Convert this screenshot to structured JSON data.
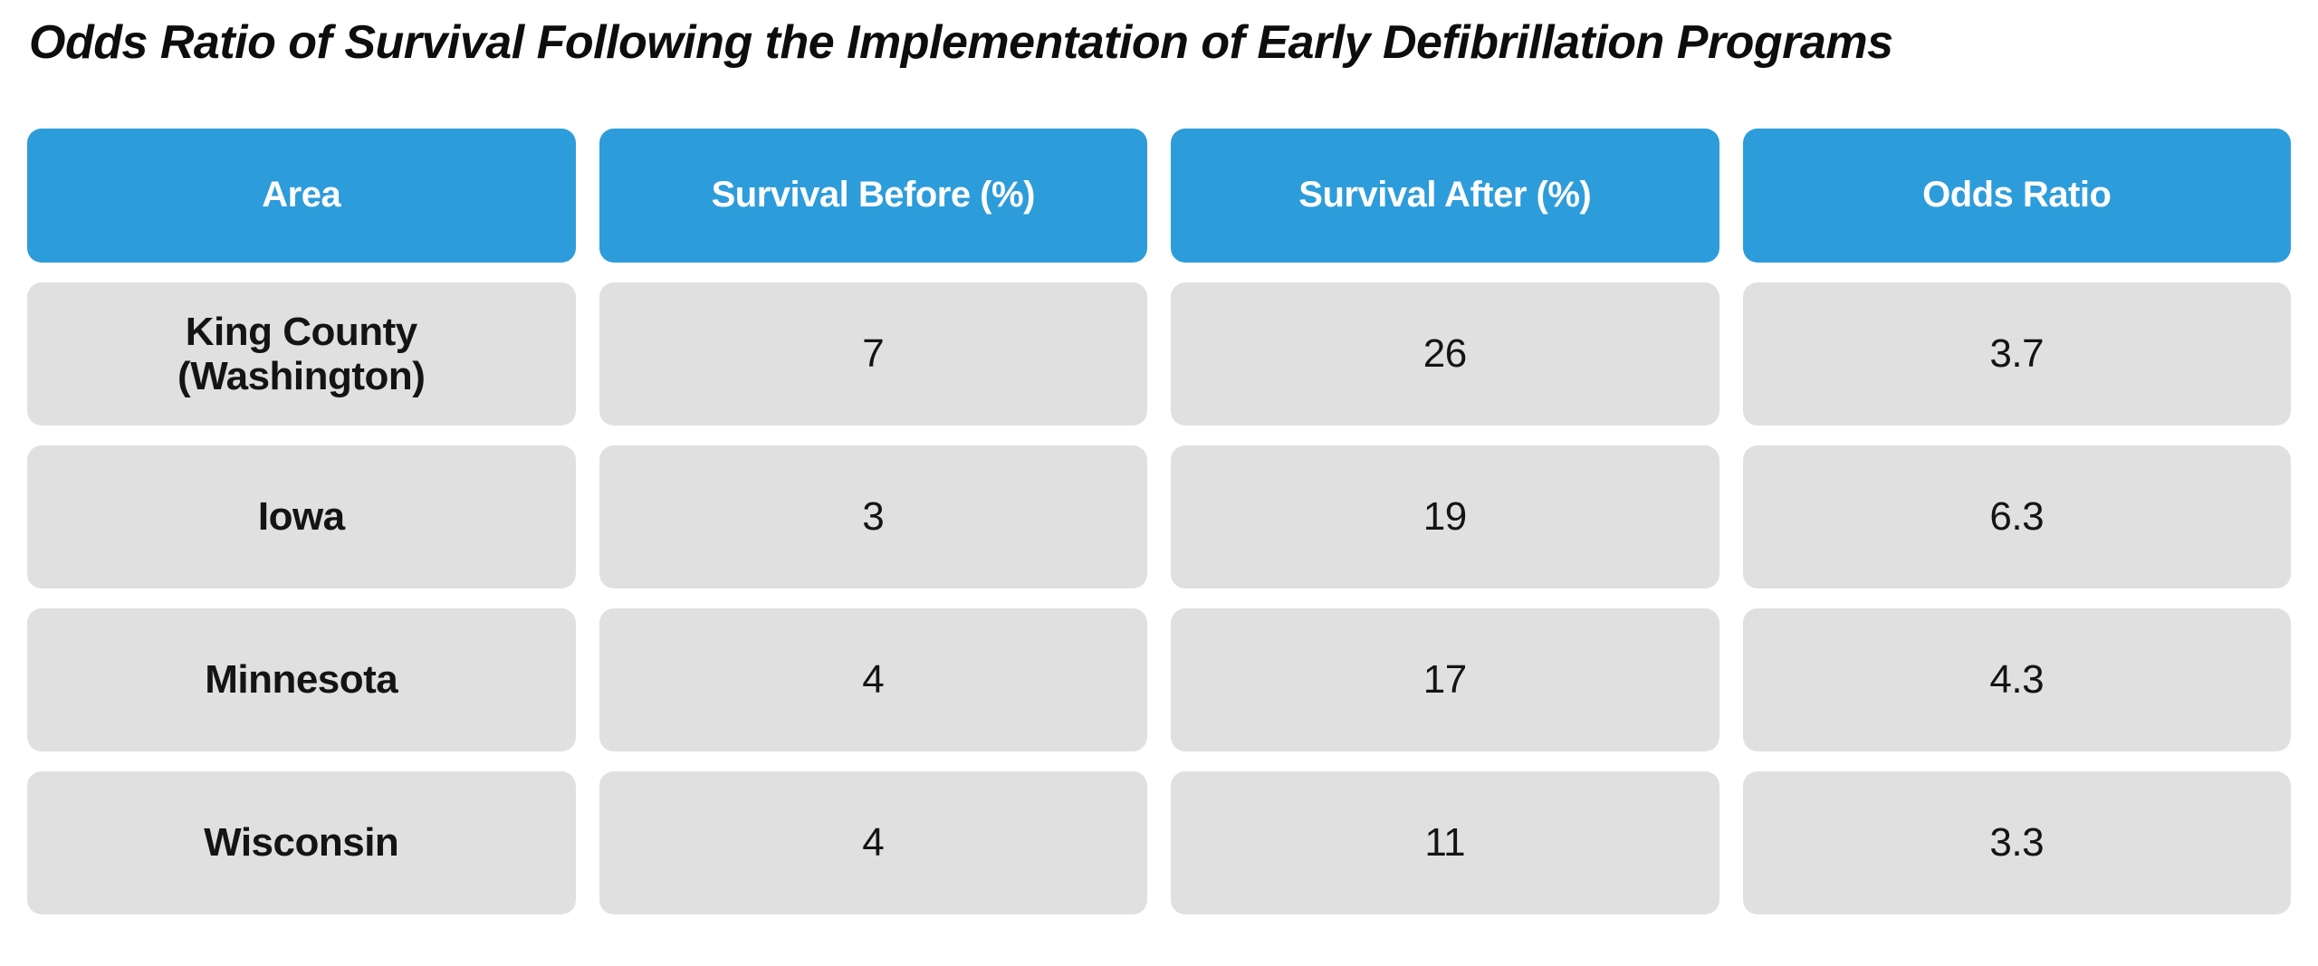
{
  "page": {
    "title": "Odds Ratio of Survival Following the Implementation of Early Defibrillation Programs"
  },
  "colors": {
    "header_bg": "#2D9CDB",
    "header_text": "#FFFFFF",
    "cell_bg": "#E0E0E0",
    "cell_text": "#141414",
    "background": "#FFFFFF"
  },
  "chart_data": {
    "type": "table",
    "title": "Odds Ratio of Survival Following the Implementation of Early Defibrillation Programs",
    "columns": [
      "Area",
      "Survival Before (%)",
      "Survival After (%)",
      "Odds Ratio"
    ],
    "rows": [
      {
        "area": "King County (Washington)",
        "survival_before": 7,
        "survival_after": 26,
        "odds_ratio": 3.7
      },
      {
        "area": "Iowa",
        "survival_before": 3,
        "survival_after": 19,
        "odds_ratio": 6.3
      },
      {
        "area": "Minnesota",
        "survival_before": 4,
        "survival_after": 17,
        "odds_ratio": 4.3
      },
      {
        "area": "Wisconsin",
        "survival_before": 4,
        "survival_after": 11,
        "odds_ratio": 3.3
      }
    ]
  }
}
